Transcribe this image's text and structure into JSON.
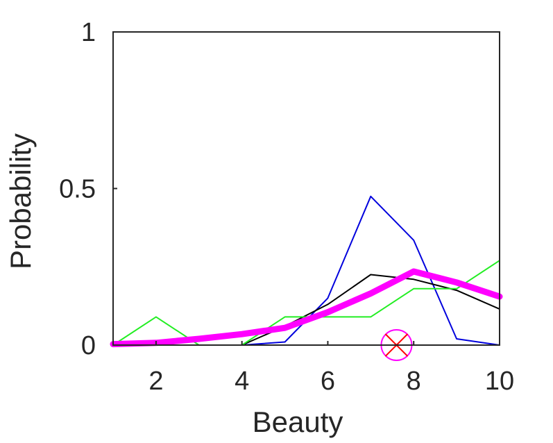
{
  "chart_data": {
    "type": "line",
    "title": "",
    "xlabel": "Beauty",
    "ylabel": "Probability",
    "xlim": [
      1,
      10
    ],
    "ylim": [
      0,
      1
    ],
    "x_ticks": [
      "2",
      "4",
      "6",
      "8",
      "10"
    ],
    "y_ticks": [
      "0",
      "0.5",
      "1"
    ],
    "grid": false,
    "legend": "none",
    "x": [
      1,
      2,
      3,
      4,
      5,
      6,
      7,
      8,
      9,
      10
    ],
    "series": [
      {
        "color": "#0000dd",
        "width": 2,
        "values": [
          0,
          0,
          0,
          0,
          0.01,
          0.15,
          0.475,
          0.335,
          0.02,
          0
        ]
      },
      {
        "color": "#000000",
        "width": 2,
        "values": [
          0,
          0,
          0,
          0,
          0.06,
          0.13,
          0.225,
          0.21,
          0.175,
          0.115
        ]
      },
      {
        "color": "#22ee22",
        "width": 2,
        "values": [
          0,
          0.09,
          0,
          0,
          0.09,
          0.09,
          0.09,
          0.18,
          0.18,
          0.27
        ]
      },
      {
        "color": "#ff00ff",
        "width": 9,
        "values": [
          0.003,
          0.007,
          0.02,
          0.035,
          0.055,
          0.105,
          0.165,
          0.235,
          0.2,
          0.155
        ]
      }
    ],
    "marker": {
      "x": 7.6,
      "y": 0,
      "ring_color": "#ff00ff",
      "cross_color": "#ff0000"
    }
  }
}
